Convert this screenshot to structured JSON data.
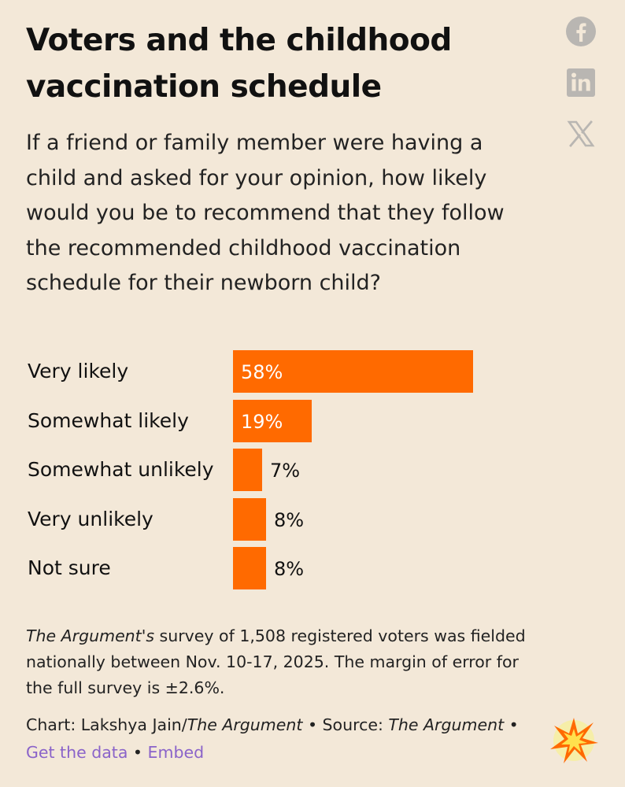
{
  "title": "Voters and the childhood vaccination schedule",
  "subtitle": "If a friend or family member were having a child and asked for your opinion, how likely would you be to recommend that they follow the recommended childhood vaccination schedule for their newborn child?",
  "social": {
    "facebook_icon": "facebook-icon",
    "linkedin_icon": "linkedin-icon",
    "x_icon": "x-icon"
  },
  "colors": {
    "background": "#f3e8d8",
    "bar": "#ff6a00",
    "link": "#8a63c9"
  },
  "chart_data": {
    "type": "bar",
    "orientation": "horizontal",
    "categories": [
      "Very likely",
      "Somewhat likely",
      "Somewhat unlikely",
      "Very unlikely",
      "Not sure"
    ],
    "values": [
      58,
      19,
      7,
      8,
      8
    ],
    "value_labels": [
      "58%",
      "19%",
      "7%",
      "8%",
      "8%"
    ],
    "xlim": [
      0,
      100
    ],
    "grid": false,
    "legend": "none"
  },
  "note": {
    "publication": "The Argument's",
    "text": " survey of 1,508 registered voters was fielded nationally between Nov. 10-17, 2025. The margin of error for the full survey is ±2.6%."
  },
  "credit": {
    "prefix": "Chart: Lakshya Jain/",
    "publication": "The Argument",
    "source_prefix": " • Source: ",
    "source_publication": "The Argument",
    "sep1": " • ",
    "get_data": "Get the data",
    "sep2": " • ",
    "embed": "Embed"
  },
  "logo_icon": "burst-logo-icon"
}
